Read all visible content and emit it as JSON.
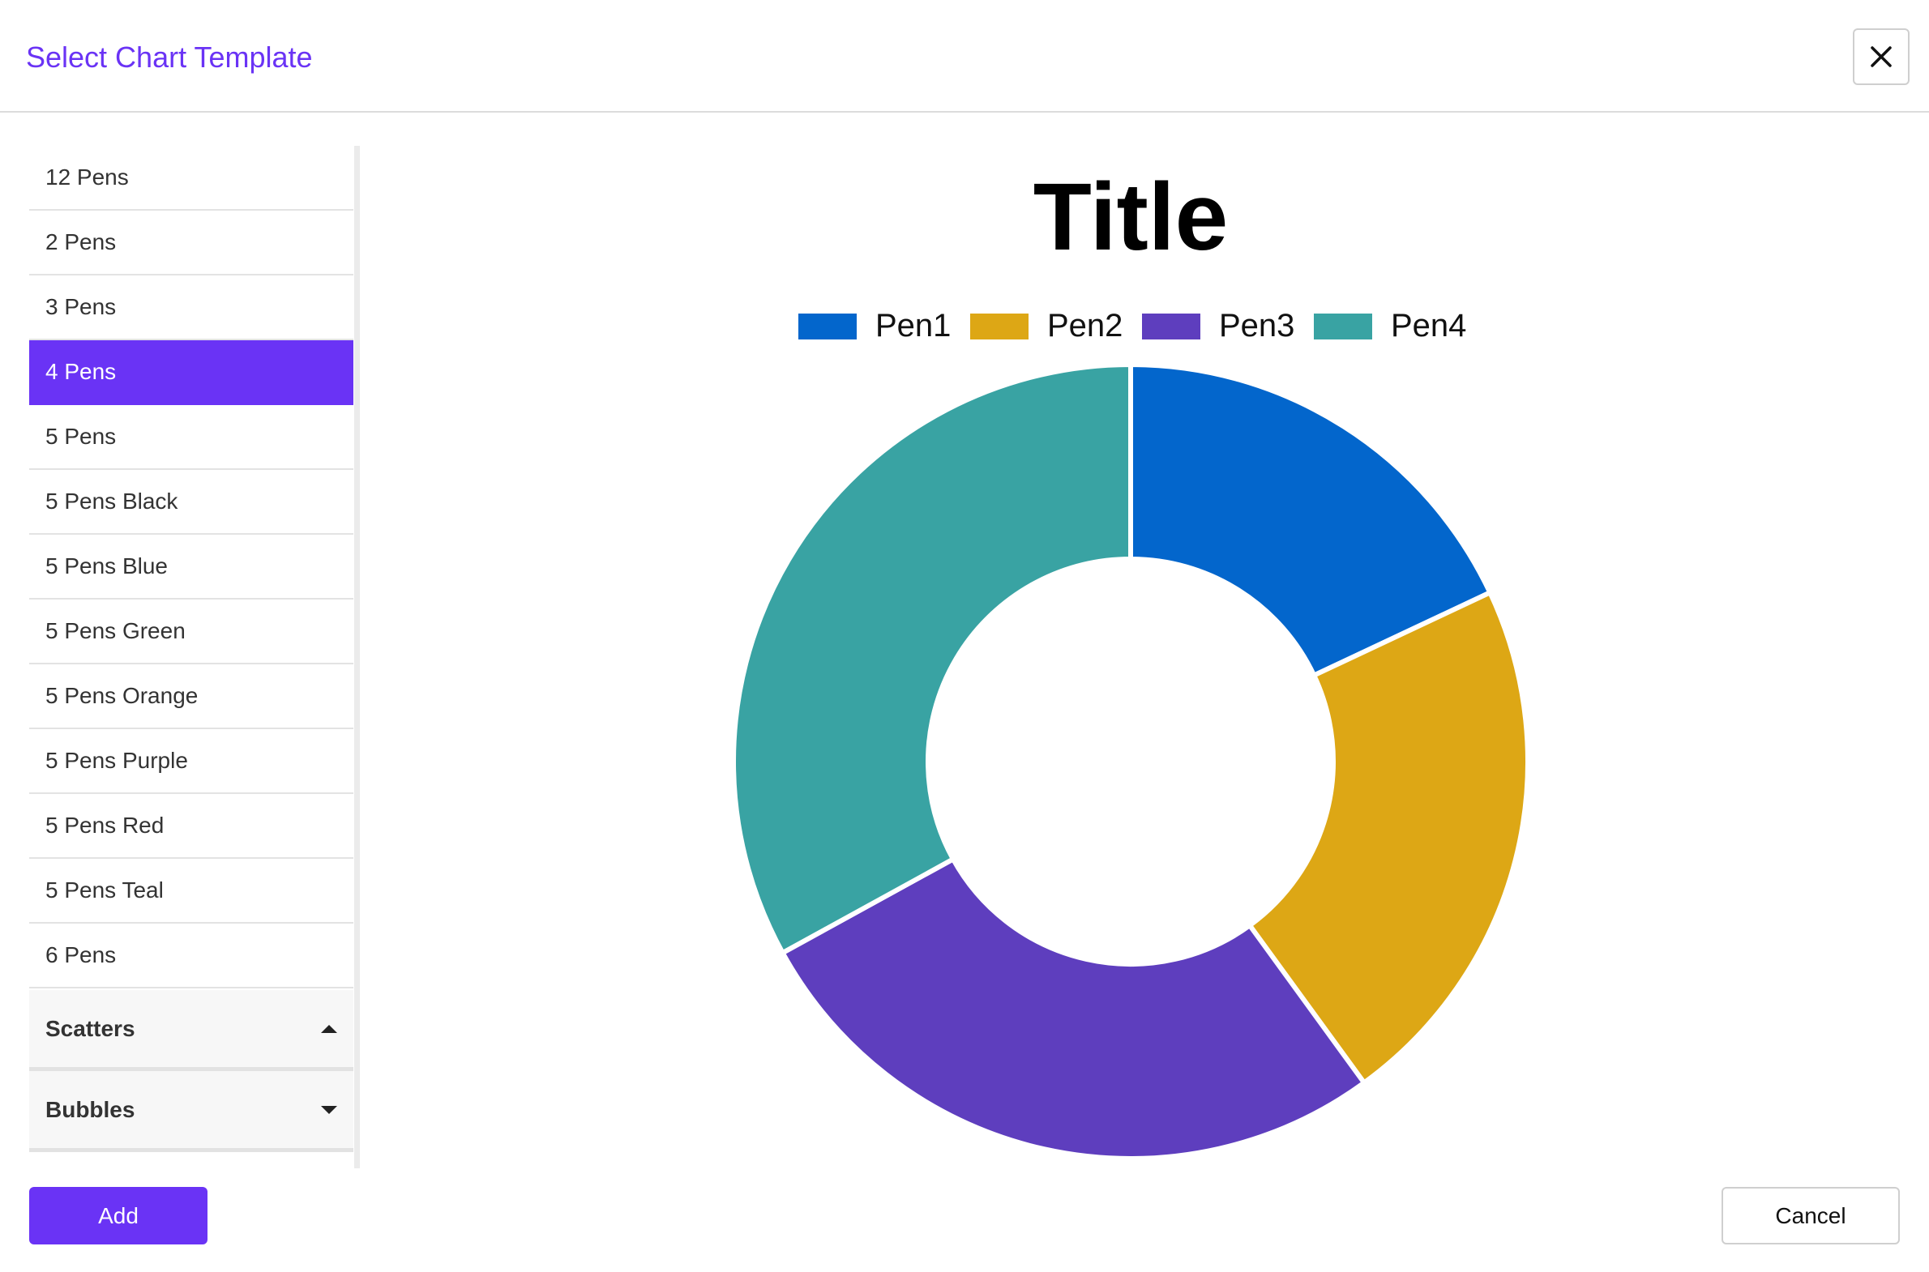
{
  "dialog": {
    "title": "Select Chart Template"
  },
  "icons": {
    "close": "close-icon",
    "expand": "caret-down-icon",
    "collapse": "caret-up-icon"
  },
  "colors": {
    "accent": "#6a33f5",
    "pen1": "#0366cc",
    "pen2": "#dda715",
    "pen3": "#5e3ebe",
    "pen4": "#39a3a3"
  },
  "template_list": {
    "selected": "4 Pens",
    "items": [
      {
        "label": "12 Pens"
      },
      {
        "label": "2 Pens"
      },
      {
        "label": "3 Pens"
      },
      {
        "label": "4 Pens"
      },
      {
        "label": "5 Pens"
      },
      {
        "label": "5 Pens Black"
      },
      {
        "label": "5 Pens Blue"
      },
      {
        "label": "5 Pens Green"
      },
      {
        "label": "5 Pens Orange"
      },
      {
        "label": "5 Pens Purple"
      },
      {
        "label": "5 Pens Red"
      },
      {
        "label": "5 Pens Teal"
      },
      {
        "label": "6 Pens"
      }
    ],
    "groups": [
      {
        "label": "Scatters",
        "expanded": true
      },
      {
        "label": "Bubbles",
        "expanded": false
      }
    ]
  },
  "chart_data": {
    "type": "pie",
    "variant": "doughnut",
    "title": "Title",
    "legend_position": "top",
    "categories": [
      "Pen1",
      "Pen2",
      "Pen3",
      "Pen4"
    ],
    "values": [
      18,
      22,
      27,
      33
    ],
    "colors": [
      "#0366cc",
      "#dda715",
      "#5e3ebe",
      "#39a3a3"
    ]
  },
  "footer": {
    "add_label": "Add",
    "cancel_label": "Cancel"
  }
}
